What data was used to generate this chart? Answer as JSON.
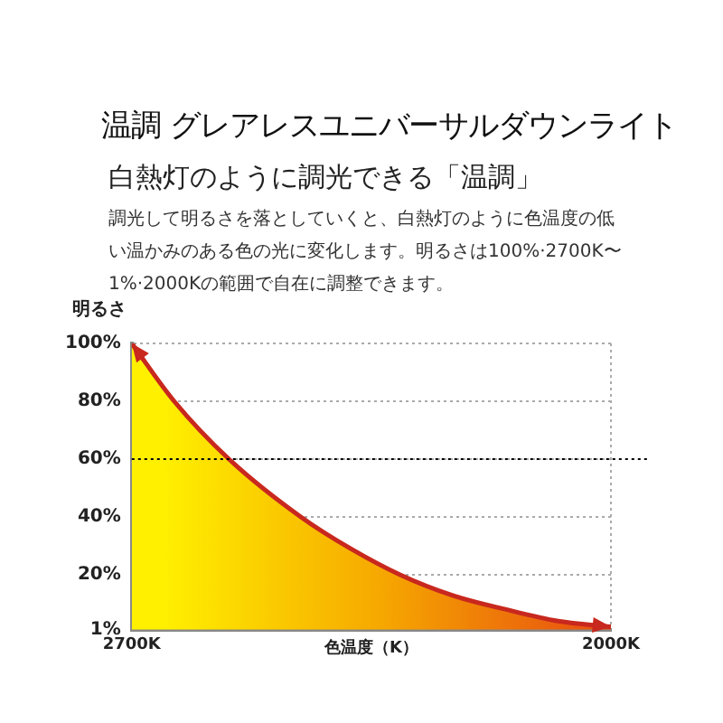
{
  "chart_data": {
    "type": "area",
    "title": "温調 グレアレスユニバーサルダウンライト",
    "subtitle": "白熱灯のように調光できる「温調」",
    "annotations": [
      "調光して明るさを落としていくと、白熱灯のように色温度の低い温かみのある色の光に変化します。明るさは100%·2700K〜1%·2000Kの範囲で自在に調整できます。"
    ],
    "xlabel": "色温度（K）",
    "ylabel": "明るさ",
    "x": [
      2700,
      2638,
      2558,
      2453,
      2380,
      2308,
      2233,
      2153,
      2077,
      2000
    ],
    "series": [
      {
        "color": "#c8281e",
        "values": [
          100,
          80,
          60,
          40,
          29,
          20,
          13,
          8,
          4,
          2
        ]
      }
    ],
    "xlim": [
      2700,
      2000
    ],
    "xticks": [
      {
        "value": 2700,
        "label": "2700K"
      },
      {
        "value": 2000,
        "label": "2000K"
      }
    ],
    "ylim": [
      1,
      100
    ],
    "yticks": [
      {
        "value": 1,
        "label": "1%"
      },
      {
        "value": 20,
        "label": "20%"
      },
      {
        "value": 40,
        "label": "40%"
      },
      {
        "value": 60,
        "label": "60%"
      },
      {
        "value": 80,
        "label": "80%"
      },
      {
        "value": 100,
        "label": "100%"
      }
    ],
    "ref_lines": [
      {
        "axis": "y",
        "value": 60,
        "color": "#000000",
        "line_style": "dotted"
      }
    ],
    "grid": true,
    "legend": false,
    "marker": "none"
  }
}
